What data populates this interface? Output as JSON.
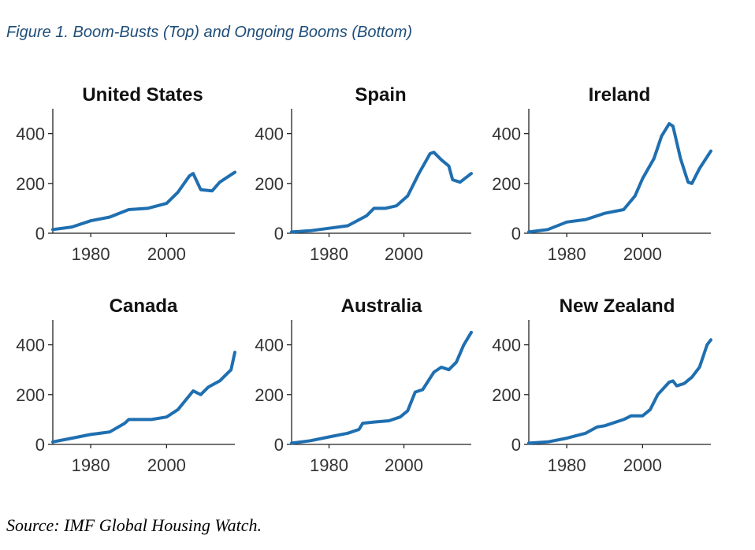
{
  "caption": "Figure 1. Boom-Busts (Top) and Ongoing Booms (Bottom)",
  "source": "Source: IMF Global Housing Watch.",
  "line_color": "#1f6fb0",
  "chart_data": [
    {
      "type": "line",
      "title": "United States",
      "xlim": [
        1970,
        2018
      ],
      "ylim": [
        0,
        500
      ],
      "xticks": [
        "1980",
        "2000"
      ],
      "yticks": [
        "0",
        "200",
        "400"
      ],
      "series": [
        {
          "x": [
            1970,
            1975,
            1980,
            1985,
            1990,
            1995,
            2000,
            2003,
            2006,
            2007,
            2009,
            2012,
            2014,
            2018
          ],
          "values": [
            15,
            25,
            50,
            65,
            95,
            100,
            120,
            165,
            230,
            240,
            175,
            170,
            205,
            245
          ]
        }
      ]
    },
    {
      "type": "line",
      "title": "Spain",
      "xlim": [
        1970,
        2018
      ],
      "ylim": [
        0,
        500
      ],
      "xticks": [
        "1980",
        "2000"
      ],
      "yticks": [
        "0",
        "200",
        "400"
      ],
      "series": [
        {
          "x": [
            1970,
            1975,
            1980,
            1985,
            1990,
            1992,
            1995,
            1998,
            2001,
            2004,
            2007,
            2008,
            2010,
            2012,
            2013,
            2015,
            2018
          ],
          "values": [
            5,
            10,
            20,
            30,
            70,
            100,
            100,
            110,
            150,
            240,
            320,
            325,
            295,
            270,
            215,
            205,
            240
          ]
        }
      ]
    },
    {
      "type": "line",
      "title": "Ireland",
      "xlim": [
        1970,
        2018
      ],
      "ylim": [
        0,
        500
      ],
      "xticks": [
        "1980",
        "2000"
      ],
      "yticks": [
        "0",
        "200",
        "400"
      ],
      "series": [
        {
          "x": [
            1970,
            1975,
            1980,
            1985,
            1990,
            1995,
            1998,
            2000,
            2003,
            2005,
            2007,
            2008,
            2010,
            2012,
            2013,
            2015,
            2018
          ],
          "values": [
            5,
            15,
            45,
            55,
            80,
            95,
            150,
            220,
            300,
            390,
            440,
            430,
            300,
            205,
            200,
            260,
            330
          ]
        }
      ]
    },
    {
      "type": "line",
      "title": "Canada",
      "xlim": [
        1970,
        2018
      ],
      "ylim": [
        0,
        500
      ],
      "xticks": [
        "1980",
        "2000"
      ],
      "yticks": [
        "0",
        "200",
        "400"
      ],
      "series": [
        {
          "x": [
            1970,
            1975,
            1980,
            1985,
            1989,
            1990,
            1993,
            1996,
            2000,
            2003,
            2007,
            2009,
            2011,
            2014,
            2017,
            2018
          ],
          "values": [
            10,
            25,
            40,
            50,
            85,
            100,
            100,
            100,
            110,
            140,
            215,
            200,
            230,
            255,
            300,
            370
          ]
        }
      ]
    },
    {
      "type": "line",
      "title": "Australia",
      "xlim": [
        1970,
        2018
      ],
      "ylim": [
        0,
        500
      ],
      "xticks": [
        "1980",
        "2000"
      ],
      "yticks": [
        "0",
        "200",
        "400"
      ],
      "series": [
        {
          "x": [
            1970,
            1975,
            1980,
            1985,
            1988,
            1989,
            1992,
            1996,
            1999,
            2001,
            2003,
            2005,
            2008,
            2010,
            2012,
            2014,
            2016,
            2018
          ],
          "values": [
            5,
            15,
            30,
            45,
            60,
            85,
            90,
            95,
            110,
            135,
            210,
            220,
            290,
            310,
            300,
            330,
            400,
            450
          ]
        }
      ]
    },
    {
      "type": "line",
      "title": "New Zealand",
      "xlim": [
        1970,
        2018
      ],
      "ylim": [
        0,
        500
      ],
      "xticks": [
        "1980",
        "2000"
      ],
      "yticks": [
        "0",
        "200",
        "400"
      ],
      "series": [
        {
          "x": [
            1970,
            1975,
            1980,
            1985,
            1988,
            1990,
            1995,
            1997,
            2000,
            2002,
            2004,
            2007,
            2008,
            2009,
            2011,
            2013,
            2015,
            2017,
            2018
          ],
          "values": [
            5,
            10,
            25,
            45,
            70,
            75,
            100,
            115,
            115,
            140,
            200,
            250,
            255,
            235,
            245,
            270,
            310,
            400,
            420
          ]
        }
      ]
    }
  ]
}
